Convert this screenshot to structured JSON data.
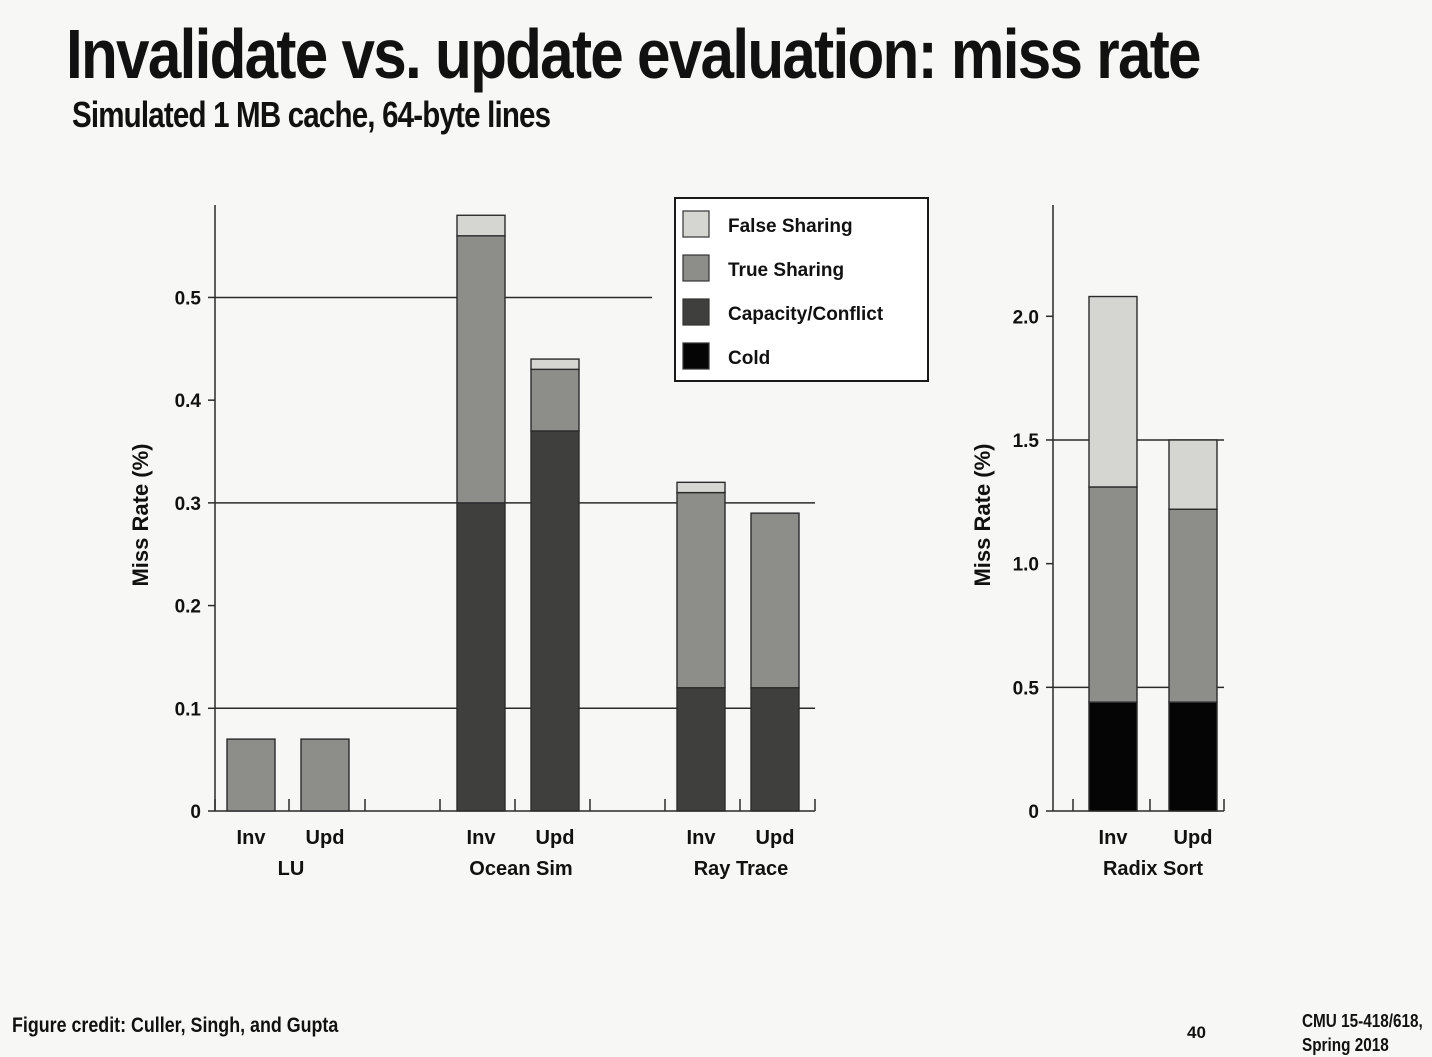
{
  "slide": {
    "title": "Invalidate vs. update evaluation: miss rate",
    "subtitle": "Simulated 1 MB cache, 64-byte lines",
    "credit": "Figure credit: Culler, Singh, and Gupta",
    "page_number": "40",
    "course": "CMU 15-418/618,",
    "term": "Spring 2018"
  },
  "legend": [
    {
      "label": "False Sharing",
      "color": "#d5d5d2"
    },
    {
      "label": "True Sharing",
      "color": "#8d8d8a"
    },
    {
      "label": "Capacity/Conflict",
      "color": "#3f403e"
    },
    {
      "label": "Cold",
      "color": "#050505"
    }
  ],
  "chart_data": [
    {
      "type": "bar",
      "stacked": true,
      "ylabel": "Miss Rate (%)",
      "ylim": [
        0,
        0.59
      ],
      "yticks": [
        "0",
        "0.1",
        "0.2",
        "0.3",
        "0.4",
        "0.5"
      ],
      "gridlines": [
        0.1,
        0.3,
        0.5
      ],
      "legend_position": "top-right",
      "groups": [
        {
          "name": "LU",
          "bars": [
            {
              "label": "Inv",
              "cold": 0,
              "capacity": 0,
              "true_sharing": 0.07,
              "false_sharing": 0
            },
            {
              "label": "Upd",
              "cold": 0,
              "capacity": 0,
              "true_sharing": 0.07,
              "false_sharing": 0
            }
          ]
        },
        {
          "name": "Ocean Sim",
          "bars": [
            {
              "label": "Inv",
              "cold": 0,
              "capacity": 0.3,
              "true_sharing": 0.26,
              "false_sharing": 0.02
            },
            {
              "label": "Upd",
              "cold": 0,
              "capacity": 0.37,
              "true_sharing": 0.06,
              "false_sharing": 0.01
            }
          ]
        },
        {
          "name": "Ray Trace",
          "bars": [
            {
              "label": "Inv",
              "cold": 0,
              "capacity": 0.12,
              "true_sharing": 0.19,
              "false_sharing": 0.01
            },
            {
              "label": "Upd",
              "cold": 0,
              "capacity": 0.12,
              "true_sharing": 0.17,
              "false_sharing": 0
            }
          ]
        }
      ]
    },
    {
      "type": "bar",
      "stacked": true,
      "ylabel": "Miss Rate (%)",
      "ylim": [
        0,
        2.45
      ],
      "yticks": [
        "0",
        "0.5",
        "1.0",
        "1.5",
        "2.0"
      ],
      "gridlines": [
        0.5,
        1.5
      ],
      "groups": [
        {
          "name": "Radix Sort",
          "bars": [
            {
              "label": "Inv",
              "cold": 0.44,
              "capacity": 0,
              "true_sharing": 0.87,
              "false_sharing": 0.77
            },
            {
              "label": "Upd",
              "cold": 0.44,
              "capacity": 0,
              "true_sharing": 0.78,
              "false_sharing": 0.28
            }
          ]
        }
      ]
    }
  ]
}
